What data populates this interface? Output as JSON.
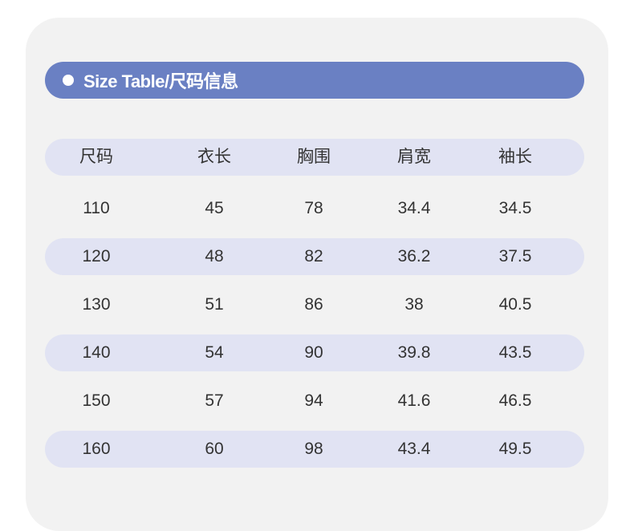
{
  "title": "Size Table/尺码信息",
  "colors": {
    "accent": "#6a80c3",
    "stripe": "#e1e3f3",
    "card": "#f2f2f2"
  },
  "table": {
    "headers": [
      "尺码",
      "衣长",
      "胸围",
      "肩宽",
      "袖长"
    ],
    "rows": [
      [
        "110",
        "45",
        "78",
        "34.4",
        "34.5"
      ],
      [
        "120",
        "48",
        "82",
        "36.2",
        "37.5"
      ],
      [
        "130",
        "51",
        "86",
        "38",
        "40.5"
      ],
      [
        "140",
        "54",
        "90",
        "39.8",
        "43.5"
      ],
      [
        "150",
        "57",
        "94",
        "41.6",
        "46.5"
      ],
      [
        "160",
        "60",
        "98",
        "43.4",
        "49.5"
      ]
    ]
  }
}
